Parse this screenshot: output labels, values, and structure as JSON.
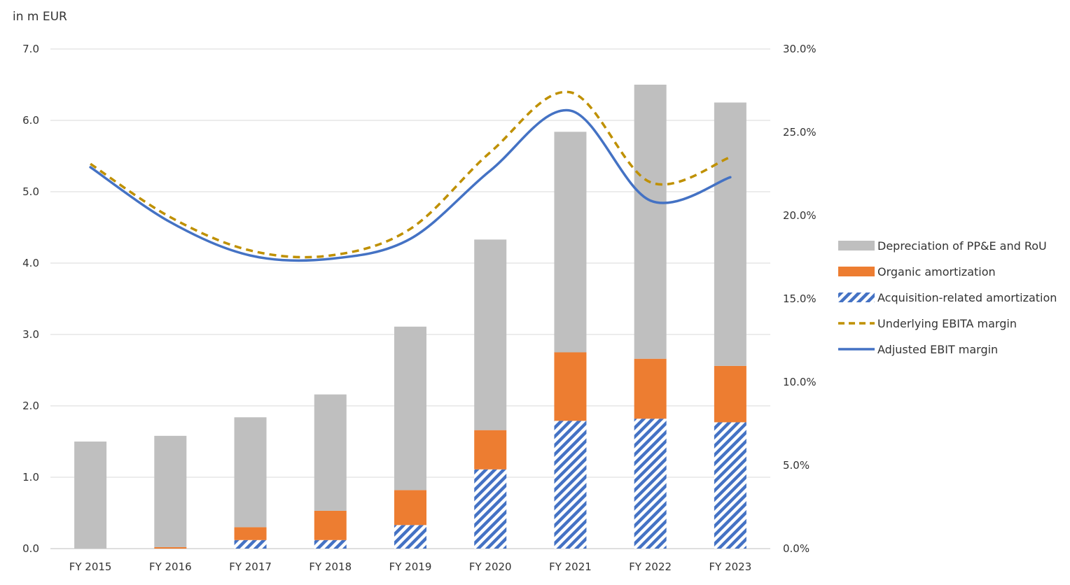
{
  "chart_data": {
    "type": "bar",
    "unit_label": "in m EUR",
    "categories": [
      "FY 2015",
      "FY 2016",
      "FY 2017",
      "FY 2018",
      "FY 2019",
      "FY 2020",
      "FY 2021",
      "FY 2022",
      "FY 2023"
    ],
    "y_left": {
      "min": 0,
      "max": 7,
      "ticks": [
        "0.0",
        "1.0",
        "2.0",
        "3.0",
        "4.0",
        "5.0",
        "6.0",
        "7.0"
      ]
    },
    "y_right": {
      "min": 0,
      "max": 30,
      "ticks": [
        "0.0%",
        "5.0%",
        "10.0%",
        "15.0%",
        "20.0%",
        "25.0%",
        "30.0%"
      ]
    },
    "series": [
      {
        "name": "Acquisition-related amortization",
        "kind": "stacked-bar",
        "color": "#4472C4",
        "pattern": "hatch",
        "values": [
          0.0,
          0.0,
          0.12,
          0.12,
          0.33,
          1.11,
          1.79,
          1.82,
          1.77
        ]
      },
      {
        "name": "Organic amortization",
        "kind": "stacked-bar",
        "color": "#ED7D31",
        "values": [
          0.0,
          0.02,
          0.18,
          0.41,
          0.49,
          0.55,
          0.96,
          0.84,
          0.79
        ]
      },
      {
        "name": "Depreciation of PP&E and RoU",
        "kind": "stacked-bar",
        "color": "#BFBFBF",
        "values": [
          1.5,
          1.56,
          1.54,
          1.63,
          2.29,
          2.67,
          3.09,
          3.84,
          3.69
        ]
      },
      {
        "name": "Underlying EBITA margin",
        "kind": "line",
        "axis": "right",
        "color": "#BF9000",
        "style": "dashed",
        "values": [
          23.1,
          19.9,
          17.9,
          17.6,
          19.2,
          23.8,
          27.4,
          22.0,
          23.5
        ]
      },
      {
        "name": "Adjusted EBIT margin",
        "kind": "line",
        "axis": "right",
        "color": "#4472C4",
        "style": "solid",
        "values": [
          22.9,
          19.6,
          17.6,
          17.4,
          18.6,
          22.7,
          26.3,
          20.9,
          22.3
        ]
      }
    ],
    "legend": [
      "Depreciation of PP&E and RoU",
      "Organic amortization",
      "Acquisition-related amortization",
      "Underlying EBITA margin",
      "Adjusted EBIT margin"
    ],
    "legend_position": "right",
    "grid": true
  }
}
